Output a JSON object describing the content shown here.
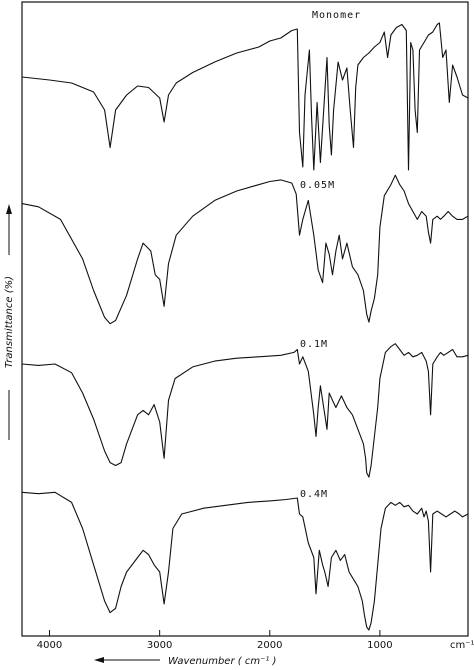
{
  "chart_data": {
    "type": "line",
    "xlabel": "Wavenumber ( cm⁻¹ )",
    "ylabel": "Transmittance (%)",
    "x_unit": "cm⁻¹",
    "x_ticks": [
      4000,
      3000,
      2000,
      1000
    ],
    "x_tick_labels": [
      "4000",
      "3000",
      "2000",
      "1000"
    ],
    "xlim": [
      4250,
      200
    ],
    "grid": false,
    "series": [
      {
        "name": "Monomer",
        "points": [
          [
            4250,
            0.62
          ],
          [
            4000,
            0.6
          ],
          [
            3800,
            0.58
          ],
          [
            3600,
            0.52
          ],
          [
            3500,
            0.4
          ],
          [
            3450,
            0.15
          ],
          [
            3400,
            0.4
          ],
          [
            3300,
            0.5
          ],
          [
            3200,
            0.56
          ],
          [
            3100,
            0.55
          ],
          [
            3000,
            0.48
          ],
          [
            2960,
            0.32
          ],
          [
            2920,
            0.5
          ],
          [
            2850,
            0.58
          ],
          [
            2700,
            0.65
          ],
          [
            2500,
            0.72
          ],
          [
            2300,
            0.78
          ],
          [
            2100,
            0.82
          ],
          [
            2000,
            0.86
          ],
          [
            1900,
            0.88
          ],
          [
            1800,
            0.93
          ],
          [
            1750,
            0.94
          ],
          [
            1730,
            0.25
          ],
          [
            1700,
            0.02
          ],
          [
            1680,
            0.5
          ],
          [
            1640,
            0.8
          ],
          [
            1620,
            0.35
          ],
          [
            1600,
            0.0
          ],
          [
            1570,
            0.45
          ],
          [
            1540,
            0.05
          ],
          [
            1510,
            0.4
          ],
          [
            1480,
            0.75
          ],
          [
            1460,
            0.3
          ],
          [
            1440,
            0.1
          ],
          [
            1420,
            0.4
          ],
          [
            1380,
            0.72
          ],
          [
            1340,
            0.6
          ],
          [
            1300,
            0.68
          ],
          [
            1270,
            0.4
          ],
          [
            1240,
            0.15
          ],
          [
            1220,
            0.55
          ],
          [
            1200,
            0.7
          ],
          [
            1150,
            0.75
          ],
          [
            1100,
            0.78
          ],
          [
            1050,
            0.82
          ],
          [
            1000,
            0.85
          ],
          [
            960,
            0.92
          ],
          [
            930,
            0.75
          ],
          [
            900,
            0.9
          ],
          [
            850,
            0.95
          ],
          [
            800,
            0.97
          ],
          [
            760,
            0.93
          ],
          [
            740,
            0.0
          ],
          [
            720,
            0.85
          ],
          [
            700,
            0.8
          ],
          [
            680,
            0.4
          ],
          [
            660,
            0.25
          ],
          [
            640,
            0.8
          ],
          [
            600,
            0.85
          ],
          [
            560,
            0.9
          ],
          [
            520,
            0.92
          ],
          [
            480,
            0.97
          ],
          [
            460,
            0.98
          ],
          [
            430,
            0.75
          ],
          [
            400,
            0.8
          ],
          [
            370,
            0.45
          ],
          [
            340,
            0.7
          ],
          [
            300,
            0.62
          ],
          [
            250,
            0.5
          ],
          [
            200,
            0.48
          ]
        ]
      },
      {
        "name": "0.05M",
        "points": [
          [
            4250,
            0.8
          ],
          [
            4100,
            0.78
          ],
          [
            3900,
            0.7
          ],
          [
            3700,
            0.45
          ],
          [
            3600,
            0.25
          ],
          [
            3500,
            0.08
          ],
          [
            3450,
            0.04
          ],
          [
            3400,
            0.06
          ],
          [
            3300,
            0.22
          ],
          [
            3200,
            0.45
          ],
          [
            3150,
            0.55
          ],
          [
            3080,
            0.5
          ],
          [
            3040,
            0.35
          ],
          [
            3000,
            0.32
          ],
          [
            2960,
            0.15
          ],
          [
            2920,
            0.42
          ],
          [
            2850,
            0.6
          ],
          [
            2700,
            0.72
          ],
          [
            2500,
            0.82
          ],
          [
            2300,
            0.88
          ],
          [
            2150,
            0.91
          ],
          [
            2000,
            0.94
          ],
          [
            1900,
            0.95
          ],
          [
            1800,
            0.93
          ],
          [
            1760,
            0.86
          ],
          [
            1730,
            0.6
          ],
          [
            1700,
            0.7
          ],
          [
            1650,
            0.82
          ],
          [
            1600,
            0.6
          ],
          [
            1560,
            0.38
          ],
          [
            1520,
            0.3
          ],
          [
            1490,
            0.55
          ],
          [
            1460,
            0.48
          ],
          [
            1430,
            0.35
          ],
          [
            1400,
            0.5
          ],
          [
            1370,
            0.6
          ],
          [
            1340,
            0.45
          ],
          [
            1300,
            0.55
          ],
          [
            1250,
            0.4
          ],
          [
            1200,
            0.35
          ],
          [
            1150,
            0.25
          ],
          [
            1120,
            0.1
          ],
          [
            1100,
            0.05
          ],
          [
            1080,
            0.12
          ],
          [
            1050,
            0.2
          ],
          [
            1020,
            0.35
          ],
          [
            1000,
            0.65
          ],
          [
            960,
            0.85
          ],
          [
            900,
            0.92
          ],
          [
            860,
            0.98
          ],
          [
            820,
            0.92
          ],
          [
            780,
            0.88
          ],
          [
            740,
            0.8
          ],
          [
            700,
            0.75
          ],
          [
            660,
            0.7
          ],
          [
            620,
            0.75
          ],
          [
            580,
            0.72
          ],
          [
            560,
            0.62
          ],
          [
            540,
            0.55
          ],
          [
            520,
            0.7
          ],
          [
            480,
            0.72
          ],
          [
            450,
            0.7
          ],
          [
            420,
            0.72
          ],
          [
            380,
            0.75
          ],
          [
            340,
            0.72
          ],
          [
            300,
            0.7
          ],
          [
            250,
            0.7
          ],
          [
            200,
            0.72
          ]
        ]
      },
      {
        "name": "0.1M",
        "points": [
          [
            4250,
            0.8
          ],
          [
            4100,
            0.79
          ],
          [
            3950,
            0.8
          ],
          [
            3800,
            0.74
          ],
          [
            3700,
            0.6
          ],
          [
            3600,
            0.42
          ],
          [
            3500,
            0.2
          ],
          [
            3450,
            0.12
          ],
          [
            3400,
            0.1
          ],
          [
            3350,
            0.12
          ],
          [
            3300,
            0.25
          ],
          [
            3200,
            0.45
          ],
          [
            3150,
            0.48
          ],
          [
            3100,
            0.45
          ],
          [
            3050,
            0.52
          ],
          [
            3000,
            0.4
          ],
          [
            2960,
            0.15
          ],
          [
            2920,
            0.55
          ],
          [
            2860,
            0.7
          ],
          [
            2700,
            0.78
          ],
          [
            2500,
            0.82
          ],
          [
            2300,
            0.84
          ],
          [
            2100,
            0.85
          ],
          [
            1900,
            0.86
          ],
          [
            1780,
            0.88
          ],
          [
            1750,
            0.9
          ],
          [
            1730,
            0.8
          ],
          [
            1700,
            0.85
          ],
          [
            1650,
            0.75
          ],
          [
            1600,
            0.45
          ],
          [
            1580,
            0.3
          ],
          [
            1560,
            0.5
          ],
          [
            1540,
            0.65
          ],
          [
            1500,
            0.45
          ],
          [
            1480,
            0.35
          ],
          [
            1460,
            0.6
          ],
          [
            1430,
            0.55
          ],
          [
            1400,
            0.5
          ],
          [
            1350,
            0.58
          ],
          [
            1300,
            0.5
          ],
          [
            1250,
            0.45
          ],
          [
            1200,
            0.35
          ],
          [
            1150,
            0.25
          ],
          [
            1130,
            0.15
          ],
          [
            1120,
            0.05
          ],
          [
            1100,
            0.02
          ],
          [
            1080,
            0.1
          ],
          [
            1050,
            0.3
          ],
          [
            1020,
            0.5
          ],
          [
            1000,
            0.7
          ],
          [
            950,
            0.88
          ],
          [
            900,
            0.92
          ],
          [
            860,
            0.94
          ],
          [
            820,
            0.9
          ],
          [
            780,
            0.86
          ],
          [
            740,
            0.88
          ],
          [
            700,
            0.85
          ],
          [
            660,
            0.86
          ],
          [
            620,
            0.88
          ],
          [
            580,
            0.82
          ],
          [
            560,
            0.75
          ],
          [
            540,
            0.45
          ],
          [
            520,
            0.8
          ],
          [
            480,
            0.85
          ],
          [
            450,
            0.88
          ],
          [
            420,
            0.86
          ],
          [
            380,
            0.88
          ],
          [
            340,
            0.9
          ],
          [
            300,
            0.85
          ],
          [
            250,
            0.85
          ],
          [
            200,
            0.86
          ]
        ]
      },
      {
        "name": "0.4M",
        "points": [
          [
            4250,
            0.95
          ],
          [
            4100,
            0.94
          ],
          [
            3950,
            0.95
          ],
          [
            3800,
            0.88
          ],
          [
            3700,
            0.7
          ],
          [
            3600,
            0.45
          ],
          [
            3500,
            0.2
          ],
          [
            3450,
            0.12
          ],
          [
            3400,
            0.15
          ],
          [
            3350,
            0.3
          ],
          [
            3300,
            0.4
          ],
          [
            3200,
            0.5
          ],
          [
            3150,
            0.55
          ],
          [
            3100,
            0.52
          ],
          [
            3050,
            0.45
          ],
          [
            3000,
            0.4
          ],
          [
            2960,
            0.18
          ],
          [
            2920,
            0.4
          ],
          [
            2880,
            0.7
          ],
          [
            2800,
            0.8
          ],
          [
            2600,
            0.84
          ],
          [
            2400,
            0.86
          ],
          [
            2200,
            0.88
          ],
          [
            2000,
            0.89
          ],
          [
            1850,
            0.9
          ],
          [
            1750,
            0.91
          ],
          [
            1730,
            0.8
          ],
          [
            1700,
            0.78
          ],
          [
            1650,
            0.6
          ],
          [
            1600,
            0.5
          ],
          [
            1580,
            0.25
          ],
          [
            1550,
            0.55
          ],
          [
            1520,
            0.45
          ],
          [
            1500,
            0.4
          ],
          [
            1470,
            0.3
          ],
          [
            1440,
            0.5
          ],
          [
            1400,
            0.55
          ],
          [
            1360,
            0.48
          ],
          [
            1320,
            0.52
          ],
          [
            1280,
            0.4
          ],
          [
            1240,
            0.35
          ],
          [
            1200,
            0.3
          ],
          [
            1160,
            0.2
          ],
          [
            1140,
            0.1
          ],
          [
            1120,
            0.02
          ],
          [
            1100,
            0.0
          ],
          [
            1080,
            0.05
          ],
          [
            1050,
            0.2
          ],
          [
            1020,
            0.45
          ],
          [
            990,
            0.7
          ],
          [
            950,
            0.84
          ],
          [
            900,
            0.88
          ],
          [
            860,
            0.86
          ],
          [
            820,
            0.88
          ],
          [
            780,
            0.85
          ],
          [
            740,
            0.86
          ],
          [
            700,
            0.82
          ],
          [
            660,
            0.8
          ],
          [
            620,
            0.84
          ],
          [
            600,
            0.78
          ],
          [
            580,
            0.82
          ],
          [
            560,
            0.75
          ],
          [
            540,
            0.4
          ],
          [
            520,
            0.8
          ],
          [
            480,
            0.82
          ],
          [
            440,
            0.8
          ],
          [
            400,
            0.78
          ],
          [
            360,
            0.8
          ],
          [
            320,
            0.82
          ],
          [
            280,
            0.8
          ],
          [
            250,
            0.78
          ],
          [
            200,
            0.8
          ]
        ]
      }
    ]
  }
}
